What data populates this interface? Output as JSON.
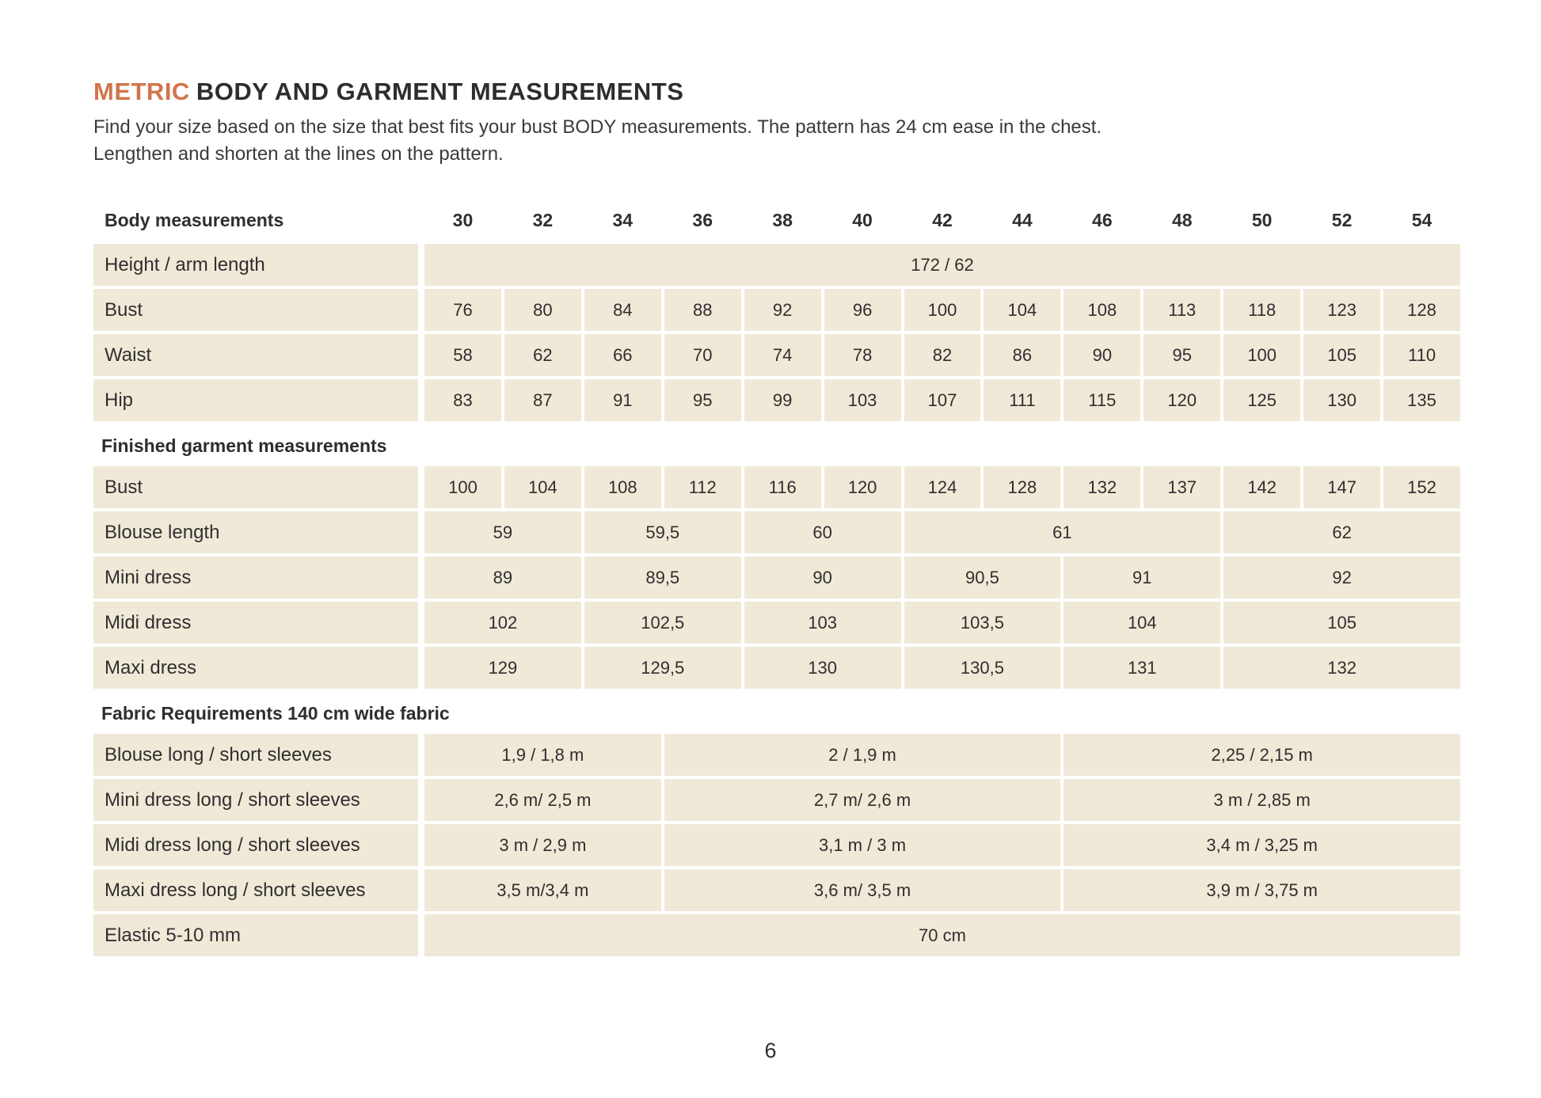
{
  "header": {
    "title_accent": "METRIC",
    "title_main": "BODY AND GARMENT MEASUREMENTS",
    "subtitle": "Find your size based on the size that best fits your bust BODY measurements. The pattern has 24 cm ease in the chest. Lengthen and shorten at the lines on the pattern."
  },
  "colors": {
    "accent": "#d0754b",
    "cell_background": "#f1e9d8",
    "text": "#2f2f2f"
  },
  "table": {
    "header_label": "Body measurements",
    "sizes": [
      "30",
      "32",
      "34",
      "36",
      "38",
      "40",
      "42",
      "44",
      "46",
      "48",
      "50",
      "52",
      "54"
    ],
    "groups": [
      {
        "title": null,
        "rows": [
          {
            "label": "Height / arm length",
            "cells": [
              {
                "t": "172 / 62",
                "s": 13
              }
            ]
          },
          {
            "label": "Bust",
            "cells": [
              {
                "t": "76",
                "s": 1
              },
              {
                "t": "80",
                "s": 1
              },
              {
                "t": "84",
                "s": 1
              },
              {
                "t": "88",
                "s": 1
              },
              {
                "t": "92",
                "s": 1
              },
              {
                "t": "96",
                "s": 1
              },
              {
                "t": "100",
                "s": 1
              },
              {
                "t": "104",
                "s": 1
              },
              {
                "t": "108",
                "s": 1
              },
              {
                "t": "113",
                "s": 1
              },
              {
                "t": "118",
                "s": 1
              },
              {
                "t": "123",
                "s": 1
              },
              {
                "t": "128",
                "s": 1
              }
            ]
          },
          {
            "label": "Waist",
            "cells": [
              {
                "t": "58",
                "s": 1
              },
              {
                "t": "62",
                "s": 1
              },
              {
                "t": "66",
                "s": 1
              },
              {
                "t": "70",
                "s": 1
              },
              {
                "t": "74",
                "s": 1
              },
              {
                "t": "78",
                "s": 1
              },
              {
                "t": "82",
                "s": 1
              },
              {
                "t": "86",
                "s": 1
              },
              {
                "t": "90",
                "s": 1
              },
              {
                "t": "95",
                "s": 1
              },
              {
                "t": "100",
                "s": 1
              },
              {
                "t": "105",
                "s": 1
              },
              {
                "t": "110",
                "s": 1
              }
            ]
          },
          {
            "label": "Hip",
            "cells": [
              {
                "t": "83",
                "s": 1
              },
              {
                "t": "87",
                "s": 1
              },
              {
                "t": "91",
                "s": 1
              },
              {
                "t": "95",
                "s": 1
              },
              {
                "t": "99",
                "s": 1
              },
              {
                "t": "103",
                "s": 1
              },
              {
                "t": "107",
                "s": 1
              },
              {
                "t": "111",
                "s": 1
              },
              {
                "t": "115",
                "s": 1
              },
              {
                "t": "120",
                "s": 1
              },
              {
                "t": "125",
                "s": 1
              },
              {
                "t": "130",
                "s": 1
              },
              {
                "t": "135",
                "s": 1
              }
            ]
          }
        ]
      },
      {
        "title": "Finished garment measurements",
        "rows": [
          {
            "label": "Bust",
            "cells": [
              {
                "t": "100",
                "s": 1
              },
              {
                "t": "104",
                "s": 1
              },
              {
                "t": "108",
                "s": 1
              },
              {
                "t": "112",
                "s": 1
              },
              {
                "t": "116",
                "s": 1
              },
              {
                "t": "120",
                "s": 1
              },
              {
                "t": "124",
                "s": 1
              },
              {
                "t": "128",
                "s": 1
              },
              {
                "t": "132",
                "s": 1
              },
              {
                "t": "137",
                "s": 1
              },
              {
                "t": "142",
                "s": 1
              },
              {
                "t": "147",
                "s": 1
              },
              {
                "t": "152",
                "s": 1
              }
            ]
          },
          {
            "label": "Blouse length",
            "cells": [
              {
                "t": "59",
                "s": 2
              },
              {
                "t": "59,5",
                "s": 2
              },
              {
                "t": "60",
                "s": 2
              },
              {
                "t": "61",
                "s": 4
              },
              {
                "t": "62",
                "s": 3
              }
            ]
          },
          {
            "label": "Mini dress",
            "cells": [
              {
                "t": "89",
                "s": 2
              },
              {
                "t": "89,5",
                "s": 2
              },
              {
                "t": "90",
                "s": 2
              },
              {
                "t": "90,5",
                "s": 2
              },
              {
                "t": "91",
                "s": 2
              },
              {
                "t": "92",
                "s": 3
              }
            ]
          },
          {
            "label": "Midi dress",
            "cells": [
              {
                "t": "102",
                "s": 2
              },
              {
                "t": "102,5",
                "s": 2
              },
              {
                "t": "103",
                "s": 2
              },
              {
                "t": "103,5",
                "s": 2
              },
              {
                "t": "104",
                "s": 2
              },
              {
                "t": "105",
                "s": 3
              }
            ]
          },
          {
            "label": "Maxi dress",
            "cells": [
              {
                "t": "129",
                "s": 2
              },
              {
                "t": "129,5",
                "s": 2
              },
              {
                "t": "130",
                "s": 2
              },
              {
                "t": "130,5",
                "s": 2
              },
              {
                "t": "131",
                "s": 2
              },
              {
                "t": "132",
                "s": 3
              }
            ]
          }
        ]
      },
      {
        "title": "Fabric Requirements 140 cm wide fabric",
        "rows": [
          {
            "label": "Blouse long / short sleeves",
            "cells": [
              {
                "t": "1,9  / 1,8 m",
                "s": 3
              },
              {
                "t": "2  / 1,9 m",
                "s": 5
              },
              {
                "t": "2,25  / 2,15 m",
                "s": 5
              }
            ]
          },
          {
            "label": "Mini dress long / short sleeves",
            "cells": [
              {
                "t": "2,6 m/ 2,5 m",
                "s": 3
              },
              {
                "t": "2,7 m/ 2,6 m",
                "s": 5
              },
              {
                "t": "3 m / 2,85 m",
                "s": 5
              }
            ]
          },
          {
            "label": "Midi dress long / short sleeves",
            "cells": [
              {
                "t": "3 m / 2,9 m",
                "s": 3
              },
              {
                "t": "3,1 m / 3 m",
                "s": 5
              },
              {
                "t": "3,4 m / 3,25 m",
                "s": 5
              }
            ]
          },
          {
            "label": "Maxi dress long / short sleeves",
            "cells": [
              {
                "t": "3,5 m/3,4 m",
                "s": 3
              },
              {
                "t": "3,6 m/ 3,5 m",
                "s": 5
              },
              {
                "t": "3,9 m / 3,75 m",
                "s": 5
              }
            ]
          },
          {
            "label": "Elastic 5-10 mm",
            "cells": [
              {
                "t": "70 cm",
                "s": 13
              }
            ]
          }
        ]
      }
    ]
  },
  "footer": {
    "page_number": "6"
  }
}
